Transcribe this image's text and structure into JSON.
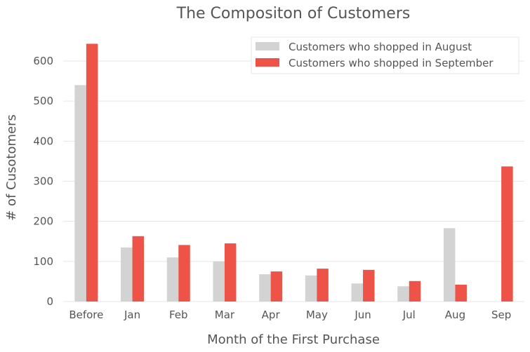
{
  "chart_data": {
    "type": "bar",
    "title": "The Compositon of Customers",
    "xlabel": "Month of the First Purchase",
    "ylabel": "# of Cusotomers",
    "categories": [
      "Before",
      "Jan",
      "Feb",
      "Mar",
      "Apr",
      "May",
      "Jun",
      "Jul",
      "Aug",
      "Sep"
    ],
    "series": [
      {
        "name": "Customers who shopped in August",
        "color": "#d3d3d3",
        "values": [
          540,
          135,
          110,
          100,
          68,
          65,
          45,
          38,
          183,
          0
        ]
      },
      {
        "name": "Customers who shopped in September",
        "color": "#ee5348",
        "values": [
          643,
          163,
          141,
          145,
          75,
          82,
          79,
          51,
          42,
          337
        ]
      }
    ],
    "yticks": [
      0,
      100,
      200,
      300,
      400,
      500,
      600
    ],
    "ylim": [
      0,
      660
    ],
    "grid": "y",
    "legend": "top-right"
  }
}
